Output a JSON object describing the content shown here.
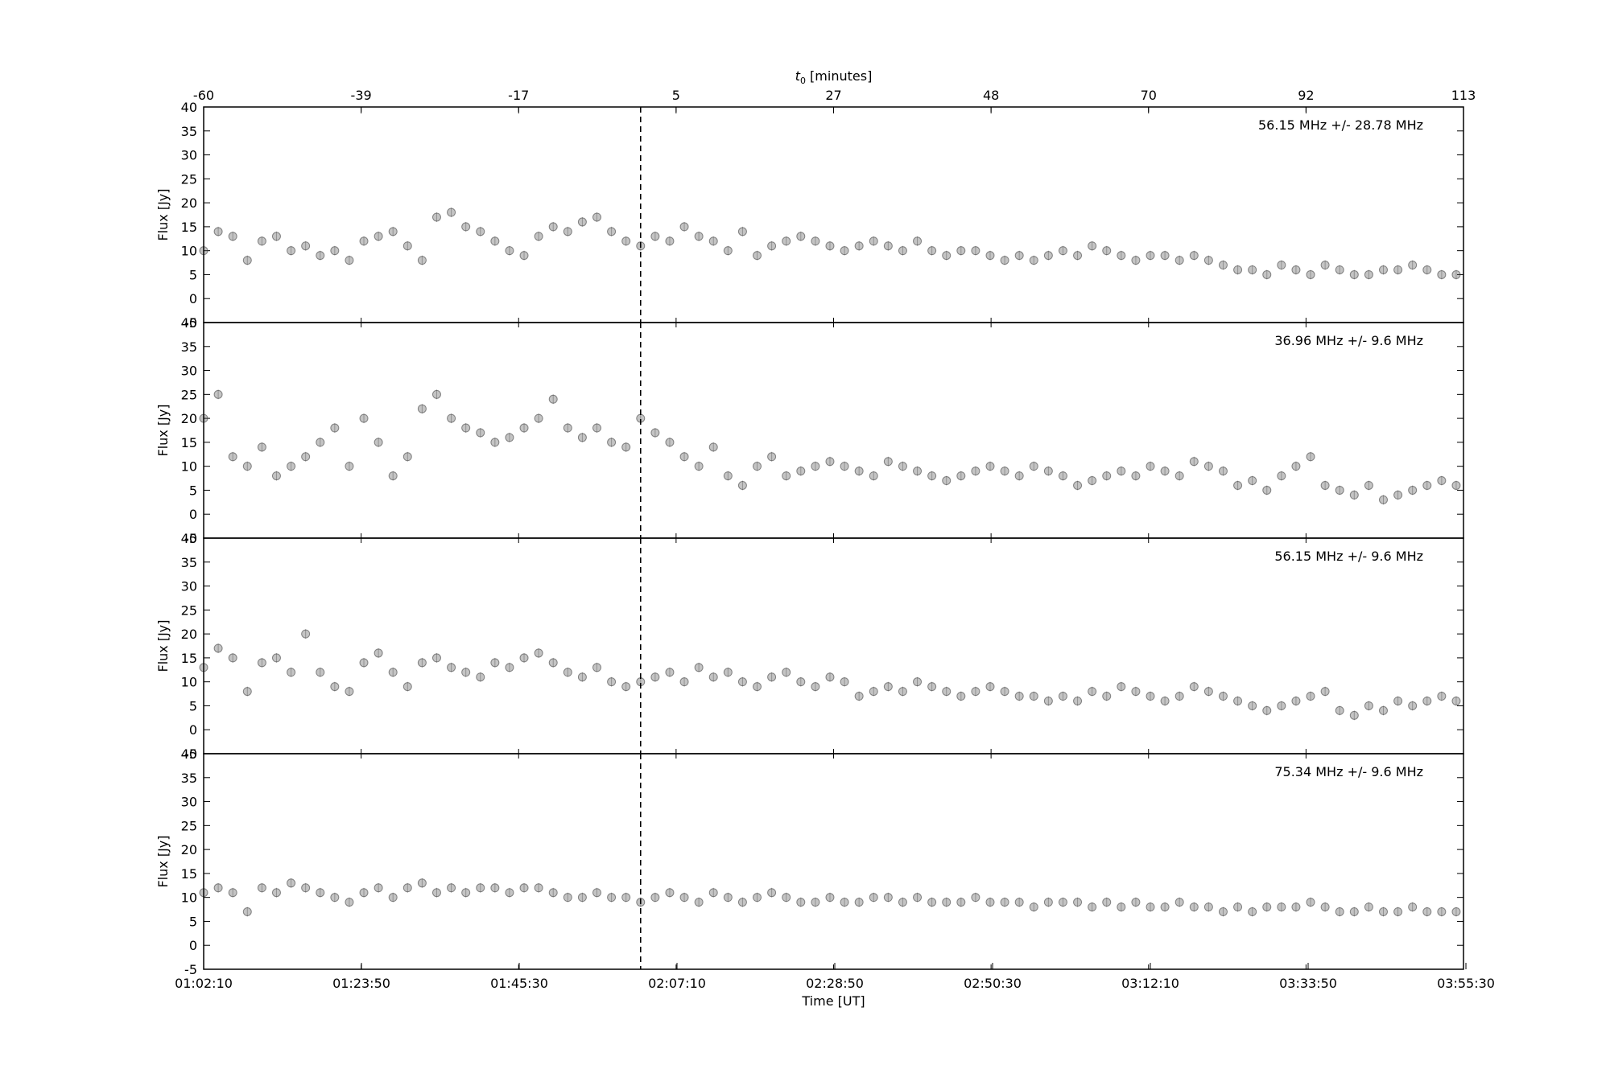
{
  "chart_data": {
    "type": "scatter",
    "x_bottom": {
      "label": "Time [UT]",
      "ticks": [
        "01:02:10",
        "01:23:50",
        "01:45:30",
        "02:07:10",
        "02:28:50",
        "02:50:30",
        "03:12:10",
        "03:33:50",
        "03:55:30"
      ],
      "range": [
        "01:02:10",
        "04:05:00"
      ]
    },
    "x_top": {
      "label_symbol": "t",
      "label_subscript": "0",
      "label_rest": " [minutes]",
      "ticks": [
        "-60",
        "-39",
        "-17",
        "5",
        "27",
        "48",
        "70",
        "92",
        "113"
      ],
      "range": [
        -60,
        113
      ]
    },
    "ylabel": "Flux [Jy]",
    "event_line_minutes": 0,
    "grid": false,
    "panels": [
      {
        "label": "56.15 MHz +/- 28.78 MHz",
        "ylim": [
          -5,
          40
        ],
        "yticks": [
          "-5",
          "0",
          "5",
          "10",
          "15",
          "20",
          "25",
          "30",
          "35",
          "40"
        ],
        "series": [
          {
            "x_minutes": [
              -60,
              -58,
              -56,
              -54,
              -52,
              -50,
              -48,
              -46,
              -44,
              -42,
              -40,
              -38,
              -36,
              -34,
              -32,
              -30,
              -28,
              -26,
              -24,
              -22,
              -20,
              -18,
              -16,
              -14,
              -12,
              -10,
              -8,
              -6,
              -4,
              -2,
              0,
              2,
              4,
              6,
              8,
              10,
              12,
              14,
              16,
              18,
              20,
              22,
              24,
              26,
              28,
              30,
              32,
              34,
              36,
              38,
              40,
              42,
              44,
              46,
              48,
              50,
              52,
              54,
              56,
              58,
              60,
              62,
              64,
              66,
              68,
              70,
              72,
              74,
              76,
              78,
              80,
              82,
              84,
              86,
              88,
              90,
              92,
              94,
              96,
              98,
              100,
              102,
              104,
              106,
              108,
              110,
              112
            ],
            "y": [
              10,
              14,
              13,
              8,
              12,
              13,
              10,
              11,
              9,
              10,
              8,
              12,
              13,
              14,
              11,
              8,
              17,
              18,
              15,
              14,
              12,
              10,
              9,
              13,
              15,
              14,
              16,
              17,
              14,
              12,
              11,
              13,
              12,
              15,
              13,
              12,
              10,
              14,
              9,
              11,
              12,
              13,
              12,
              11,
              10,
              11,
              12,
              11,
              10,
              12,
              10,
              9,
              10,
              10,
              9,
              8,
              9,
              8,
              9,
              10,
              9,
              11,
              10,
              9,
              8,
              9,
              9,
              8,
              9,
              8,
              7,
              6,
              6,
              5,
              7,
              6,
              5,
              7,
              6,
              5,
              5,
              6,
              6,
              7,
              6,
              5,
              5
            ]
          }
        ]
      },
      {
        "label": "36.96 MHz +/- 9.6 MHz",
        "ylim": [
          -5,
          40
        ],
        "yticks": [
          "-5",
          "0",
          "5",
          "10",
          "15",
          "20",
          "25",
          "30",
          "35",
          "40"
        ],
        "series": [
          {
            "x_minutes": [
              -60,
              -58,
              -56,
              -54,
              -52,
              -50,
              -48,
              -46,
              -44,
              -42,
              -40,
              -38,
              -36,
              -34,
              -32,
              -30,
              -28,
              -26,
              -24,
              -22,
              -20,
              -18,
              -16,
              -14,
              -12,
              -10,
              -8,
              -6,
              -4,
              -2,
              0,
              2,
              4,
              6,
              8,
              10,
              12,
              14,
              16,
              18,
              20,
              22,
              24,
              26,
              28,
              30,
              32,
              34,
              36,
              38,
              40,
              42,
              44,
              46,
              48,
              50,
              52,
              54,
              56,
              58,
              60,
              62,
              64,
              66,
              68,
              70,
              72,
              74,
              76,
              78,
              80,
              82,
              84,
              86,
              88,
              90,
              92,
              94,
              96,
              98,
              100,
              102,
              104,
              106,
              108,
              110,
              112
            ],
            "y": [
              20,
              25,
              12,
              10,
              14,
              8,
              10,
              12,
              15,
              18,
              10,
              20,
              15,
              8,
              12,
              22,
              25,
              20,
              18,
              17,
              15,
              16,
              18,
              20,
              24,
              18,
              16,
              18,
              15,
              14,
              20,
              17,
              15,
              12,
              10,
              14,
              8,
              6,
              10,
              12,
              8,
              9,
              10,
              11,
              10,
              9,
              8,
              11,
              10,
              9,
              8,
              7,
              8,
              9,
              10,
              9,
              8,
              10,
              9,
              8,
              6,
              7,
              8,
              9,
              8,
              10,
              9,
              8,
              11,
              10,
              9,
              6,
              7,
              5,
              8,
              10,
              12,
              6,
              5,
              4,
              6,
              3,
              4,
              5,
              6,
              7,
              6
            ]
          }
        ]
      },
      {
        "label": "56.15 MHz +/- 9.6 MHz",
        "ylim": [
          -5,
          40
        ],
        "yticks": [
          "-5",
          "0",
          "5",
          "10",
          "15",
          "20",
          "25",
          "30",
          "35",
          "40"
        ],
        "series": [
          {
            "x_minutes": [
              -60,
              -58,
              -56,
              -54,
              -52,
              -50,
              -48,
              -46,
              -44,
              -42,
              -40,
              -38,
              -36,
              -34,
              -32,
              -30,
              -28,
              -26,
              -24,
              -22,
              -20,
              -18,
              -16,
              -14,
              -12,
              -10,
              -8,
              -6,
              -4,
              -2,
              0,
              2,
              4,
              6,
              8,
              10,
              12,
              14,
              16,
              18,
              20,
              22,
              24,
              26,
              28,
              30,
              32,
              34,
              36,
              38,
              40,
              42,
              44,
              46,
              48,
              50,
              52,
              54,
              56,
              58,
              60,
              62,
              64,
              66,
              68,
              70,
              72,
              74,
              76,
              78,
              80,
              82,
              84,
              86,
              88,
              90,
              92,
              94,
              96,
              98,
              100,
              102,
              104,
              106,
              108,
              110,
              112
            ],
            "y": [
              13,
              17,
              15,
              8,
              14,
              15,
              12,
              20,
              12,
              9,
              8,
              14,
              16,
              12,
              9,
              14,
              15,
              13,
              12,
              11,
              14,
              13,
              15,
              16,
              14,
              12,
              11,
              13,
              10,
              9,
              10,
              11,
              12,
              10,
              13,
              11,
              12,
              10,
              9,
              11,
              12,
              10,
              9,
              11,
              10,
              7,
              8,
              9,
              8,
              10,
              9,
              8,
              7,
              8,
              9,
              8,
              7,
              7,
              6,
              7,
              6,
              8,
              7,
              9,
              8,
              7,
              6,
              7,
              9,
              8,
              7,
              6,
              5,
              4,
              5,
              6,
              7,
              8,
              4,
              3,
              5,
              4,
              6,
              5,
              6,
              7,
              6
            ]
          }
        ]
      },
      {
        "label": "75.34 MHz +/- 9.6 MHz",
        "ylim": [
          -5,
          40
        ],
        "yticks": [
          "-5",
          "0",
          "5",
          "10",
          "15",
          "20",
          "25",
          "30",
          "35",
          "40"
        ],
        "series": [
          {
            "x_minutes": [
              -60,
              -58,
              -56,
              -54,
              -52,
              -50,
              -48,
              -46,
              -44,
              -42,
              -40,
              -38,
              -36,
              -34,
              -32,
              -30,
              -28,
              -26,
              -24,
              -22,
              -20,
              -18,
              -16,
              -14,
              -12,
              -10,
              -8,
              -6,
              -4,
              -2,
              0,
              2,
              4,
              6,
              8,
              10,
              12,
              14,
              16,
              18,
              20,
              22,
              24,
              26,
              28,
              30,
              32,
              34,
              36,
              38,
              40,
              42,
              44,
              46,
              48,
              50,
              52,
              54,
              56,
              58,
              60,
              62,
              64,
              66,
              68,
              70,
              72,
              74,
              76,
              78,
              80,
              82,
              84,
              86,
              88,
              90,
              92,
              94,
              96,
              98,
              100,
              102,
              104,
              106,
              108,
              110,
              112
            ],
            "y": [
              11,
              12,
              11,
              7,
              12,
              11,
              13,
              12,
              11,
              10,
              9,
              11,
              12,
              10,
              12,
              13,
              11,
              12,
              11,
              12,
              12,
              11,
              12,
              12,
              11,
              10,
              10,
              11,
              10,
              10,
              9,
              10,
              11,
              10,
              9,
              11,
              10,
              9,
              10,
              11,
              10,
              9,
              9,
              10,
              9,
              9,
              10,
              10,
              9,
              10,
              9,
              9,
              9,
              10,
              9,
              9,
              9,
              8,
              9,
              9,
              9,
              8,
              9,
              8,
              9,
              8,
              8,
              9,
              8,
              8,
              7,
              8,
              7,
              8,
              8,
              8,
              9,
              8,
              7,
              7,
              8,
              7,
              7,
              8,
              7,
              7,
              7
            ]
          }
        ]
      }
    ]
  }
}
